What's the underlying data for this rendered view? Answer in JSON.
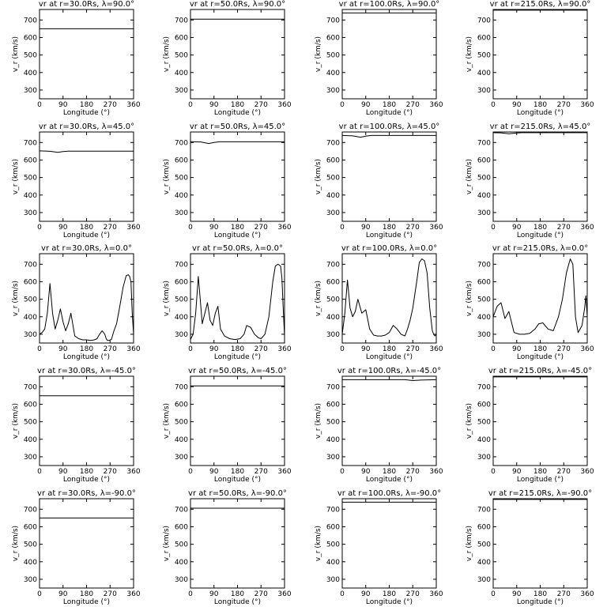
{
  "x_ticks": [
    "0",
    "90",
    "180",
    "270",
    "360"
  ],
  "y_ticks": [
    "300",
    "400",
    "500",
    "600",
    "700"
  ],
  "x_label": "Longitude (°)",
  "y_label": "v_r (km/s)",
  "colors": {
    "background": "#ffffff",
    "axes": "#000000",
    "line": "#000000"
  },
  "chart_data": [
    {
      "type": "line",
      "title": "vr at r=30.0Rs, λ=90.0°",
      "xlim": [
        0,
        360
      ],
      "ylim": [
        250,
        760
      ],
      "x": [
        0,
        360
      ],
      "y": [
        650,
        650
      ]
    },
    {
      "type": "line",
      "title": "vr at r=50.0Rs, λ=90.0°",
      "xlim": [
        0,
        360
      ],
      "ylim": [
        250,
        760
      ],
      "x": [
        0,
        360
      ],
      "y": [
        705,
        705
      ]
    },
    {
      "type": "line",
      "title": "vr at r=100.0Rs, λ=90.0°",
      "xlim": [
        0,
        360
      ],
      "ylim": [
        250,
        760
      ],
      "x": [
        0,
        360
      ],
      "y": [
        740,
        740
      ]
    },
    {
      "type": "line",
      "title": "vr at r=215.0Rs, λ=90.0°",
      "xlim": [
        0,
        360
      ],
      "ylim": [
        250,
        760
      ],
      "x": [
        0,
        360
      ],
      "y": [
        756,
        756
      ]
    },
    {
      "type": "line",
      "title": "vr at r=30.0Rs, λ=45.0°",
      "xlim": [
        0,
        360
      ],
      "ylim": [
        250,
        760
      ],
      "x": [
        0,
        40,
        70,
        90,
        110,
        360
      ],
      "y": [
        652,
        650,
        644,
        648,
        651,
        651
      ]
    },
    {
      "type": "line",
      "title": "vr at r=50.0Rs, λ=45.0°",
      "xlim": [
        0,
        360
      ],
      "ylim": [
        250,
        760
      ],
      "x": [
        0,
        40,
        70,
        90,
        110,
        360
      ],
      "y": [
        705,
        703,
        694,
        700,
        704,
        704
      ]
    },
    {
      "type": "line",
      "title": "vr at r=100.0Rs, λ=45.0°",
      "xlim": [
        0,
        360
      ],
      "ylim": [
        250,
        760
      ],
      "x": [
        0,
        40,
        70,
        90,
        110,
        360
      ],
      "y": [
        740,
        738,
        730,
        736,
        740,
        740
      ]
    },
    {
      "type": "line",
      "title": "vr at r=215.0Rs, λ=45.0°",
      "xlim": [
        0,
        360
      ],
      "ylim": [
        250,
        760
      ],
      "x": [
        0,
        30,
        60,
        90,
        110,
        360
      ],
      "y": [
        756,
        755,
        750,
        754,
        756,
        756
      ]
    },
    {
      "type": "line",
      "title": "vr at r=30.0Rs, λ=0.0°",
      "xlim": [
        0,
        360
      ],
      "ylim": [
        250,
        760
      ],
      "x": [
        0,
        10,
        20,
        30,
        40,
        50,
        60,
        70,
        80,
        90,
        100,
        110,
        120,
        135,
        150,
        165,
        180,
        195,
        210,
        220,
        230,
        240,
        250,
        255,
        260,
        265,
        275,
        285,
        295,
        305,
        320,
        332,
        340,
        345,
        350,
        355,
        360
      ],
      "y": [
        300,
        310,
        330,
        420,
        590,
        420,
        330,
        380,
        445,
        370,
        320,
        360,
        420,
        290,
        275,
        268,
        268,
        265,
        268,
        275,
        300,
        320,
        300,
        275,
        265,
        265,
        270,
        320,
        360,
        440,
        570,
        635,
        640,
        630,
        600,
        420,
        300
      ]
    },
    {
      "type": "line",
      "title": "vr at r=50.0Rs, λ=0.0°",
      "xlim": [
        0,
        360
      ],
      "ylim": [
        250,
        760
      ],
      "x": [
        0,
        10,
        20,
        30,
        35,
        45,
        55,
        65,
        75,
        85,
        95,
        105,
        115,
        130,
        150,
        170,
        190,
        205,
        215,
        230,
        245,
        260,
        270,
        285,
        300,
        315,
        325,
        335,
        345,
        350,
        355,
        360
      ],
      "y": [
        270,
        300,
        420,
        630,
        540,
        360,
        420,
        480,
        380,
        350,
        420,
        460,
        330,
        290,
        275,
        270,
        275,
        300,
        350,
        340,
        300,
        280,
        275,
        300,
        400,
        600,
        690,
        700,
        690,
        620,
        450,
        290
      ]
    },
    {
      "type": "line",
      "title": "vr at r=100.0Rs, λ=0.0°",
      "xlim": [
        0,
        360
      ],
      "ylim": [
        250,
        760
      ],
      "x": [
        0,
        10,
        20,
        30,
        40,
        50,
        60,
        75,
        90,
        105,
        120,
        135,
        150,
        165,
        180,
        195,
        210,
        225,
        240,
        250,
        260,
        270,
        285,
        295,
        305,
        315,
        325,
        335,
        345,
        350,
        355,
        360
      ],
      "y": [
        300,
        420,
        610,
        450,
        400,
        430,
        500,
        420,
        440,
        330,
        295,
        290,
        290,
        295,
        310,
        350,
        330,
        300,
        290,
        330,
        380,
        450,
        600,
        710,
        730,
        720,
        650,
        450,
        320,
        300,
        290,
        300
      ]
    },
    {
      "type": "line",
      "title": "vr at r=215.0Rs, λ=0.0°",
      "xlim": [
        0,
        360
      ],
      "ylim": [
        250,
        760
      ],
      "x": [
        0,
        15,
        30,
        45,
        60,
        80,
        100,
        120,
        140,
        160,
        175,
        190,
        210,
        230,
        250,
        265,
        280,
        295,
        305,
        315,
        325,
        340,
        350,
        355,
        360
      ],
      "y": [
        400,
        460,
        480,
        390,
        430,
        310,
        300,
        300,
        305,
        330,
        360,
        365,
        330,
        320,
        400,
        500,
        650,
        730,
        700,
        400,
        310,
        350,
        450,
        520,
        400
      ]
    },
    {
      "type": "line",
      "title": "vr at r=30.0Rs, λ=-45.0°",
      "xlim": [
        0,
        360
      ],
      "ylim": [
        250,
        760
      ],
      "x": [
        0,
        360
      ],
      "y": [
        648,
        648
      ]
    },
    {
      "type": "line",
      "title": "vr at r=50.0Rs, λ=-45.0°",
      "xlim": [
        0,
        360
      ],
      "ylim": [
        250,
        760
      ],
      "x": [
        0,
        360
      ],
      "y": [
        705,
        705
      ]
    },
    {
      "type": "line",
      "title": "vr at r=100.0Rs, λ=-45.0°",
      "xlim": [
        0,
        360
      ],
      "ylim": [
        250,
        760
      ],
      "x": [
        0,
        240,
        270,
        300,
        360
      ],
      "y": [
        740,
        740,
        735,
        738,
        740
      ]
    },
    {
      "type": "line",
      "title": "vr at r=215.0Rs, λ=-45.0°",
      "xlim": [
        0,
        360
      ],
      "ylim": [
        250,
        760
      ],
      "x": [
        0,
        360
      ],
      "y": [
        756,
        756
      ]
    },
    {
      "type": "line",
      "title": "vr at r=30.0Rs, λ=-90.0°",
      "xlim": [
        0,
        360
      ],
      "ylim": [
        250,
        760
      ],
      "x": [
        0,
        360
      ],
      "y": [
        650,
        650
      ]
    },
    {
      "type": "line",
      "title": "vr at r=50.0Rs, λ=-90.0°",
      "xlim": [
        0,
        360
      ],
      "ylim": [
        250,
        760
      ],
      "x": [
        0,
        360
      ],
      "y": [
        706,
        706
      ]
    },
    {
      "type": "line",
      "title": "vr at r=100.0Rs, λ=-90.0°",
      "xlim": [
        0,
        360
      ],
      "ylim": [
        250,
        760
      ],
      "x": [
        0,
        360
      ],
      "y": [
        740,
        740
      ]
    },
    {
      "type": "line",
      "title": "vr at r=215.0Rs, λ=-90.0°",
      "xlim": [
        0,
        360
      ],
      "ylim": [
        250,
        760
      ],
      "x": [
        0,
        360
      ],
      "y": [
        756,
        756
      ]
    }
  ]
}
